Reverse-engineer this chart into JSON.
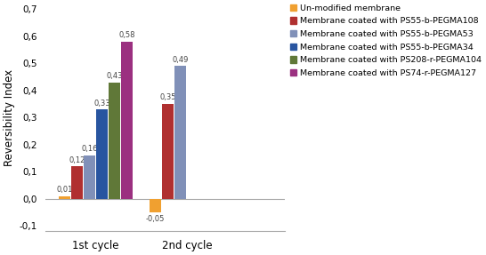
{
  "groups": [
    "1st cycle",
    "2nd cycle"
  ],
  "series": [
    {
      "label": "Un-modified membrane",
      "color": "#F0A030",
      "values": [
        0.01,
        -0.05
      ]
    },
    {
      "label": "Membrane coated with PS55-b-PEGMA108",
      "color": "#B03030",
      "values": [
        0.12,
        0.35
      ]
    },
    {
      "label": "Membrane coated with PS55-b-PEGMA53",
      "color": "#8090B8",
      "values": [
        0.16,
        0.49
      ]
    },
    {
      "label": "Membrane coated with PS55-b-PEGMA34",
      "color": "#2855A0",
      "values": [
        0.33,
        null
      ]
    },
    {
      "label": "Membrane coated with PS208-r-PEGMA104",
      "color": "#607838",
      "values": [
        0.43,
        null
      ]
    },
    {
      "label": "Membrane coated with PS74-r-PEGMA127",
      "color": "#9B3080",
      "values": [
        0.58,
        null
      ]
    }
  ],
  "ylabel": "Reversibility Index",
  "ylim": [
    -0.12,
    0.72
  ],
  "yticks": [
    -0.1,
    0.0,
    0.1,
    0.2,
    0.3,
    0.4,
    0.5,
    0.6,
    0.7
  ],
  "ytick_labels": [
    "-0,1",
    "0,0",
    "0,1",
    "0,2",
    "0,3",
    "0,4",
    "0,5",
    "0,6",
    "0,7"
  ],
  "bar_width": 0.055,
  "group_centers": [
    0.22,
    0.62
  ],
  "background_color": "#FFFFFF",
  "label_fontsize": 6.0,
  "legend_fontsize": 6.8,
  "axis_label_fontsize": 8.5,
  "xtick_fontsize": 8.5
}
